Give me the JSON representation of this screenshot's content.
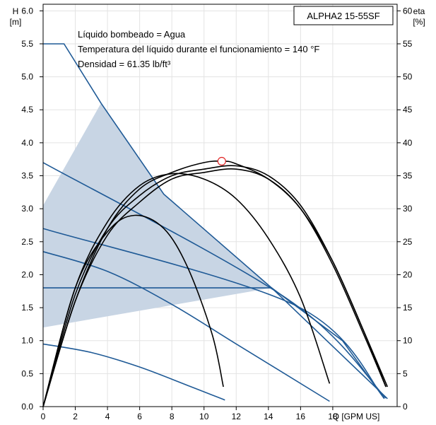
{
  "chart_data": {
    "type": "line",
    "model_label": "ALPHA2 15-55SF",
    "notes": [
      "Líquido bombeado = Agua",
      "Temperatura del líquido durante el funcionamiento = 140 °F",
      "Densidad = 61.35 lb/ft³"
    ],
    "x_axis": {
      "title": "Q [GPM US]",
      "ticks": [
        "0",
        "2",
        "4",
        "6",
        "8",
        "10",
        "12",
        "14",
        "16",
        "18"
      ],
      "range": [
        0,
        22
      ]
    },
    "y_left": {
      "title_line1": "H",
      "title_line2": "[m]",
      "ticks": [
        "0.0",
        "0.5",
        "1.0",
        "1.5",
        "2.0",
        "2.5",
        "3.0",
        "3.5",
        "4.0",
        "4.5",
        "5.0",
        "5.5",
        "6.0"
      ],
      "range": [
        0,
        6.1
      ]
    },
    "y_right": {
      "title_line1": "eta",
      "title_line2": "[%]",
      "ticks": [
        "0",
        "5",
        "10",
        "15",
        "20",
        "25",
        "30",
        "35",
        "40",
        "45",
        "50",
        "55",
        "60"
      ],
      "range": [
        0,
        61
      ]
    },
    "grid": true,
    "colors": {
      "curve_blue": "#1f5a96",
      "area_fill": "#c8d5e4",
      "eta_curve": "#000000",
      "marker": "#e02020"
    },
    "operating_area": [
      [
        0,
        1.2
      ],
      [
        0,
        3.05
      ],
      [
        3.6,
        4.6
      ],
      [
        7.5,
        3.22
      ],
      [
        14.2,
        1.8
      ],
      [
        0,
        1.2
      ]
    ],
    "head_curves": [
      {
        "points": [
          [
            0,
            5.5
          ],
          [
            1.3,
            5.5
          ],
          [
            3.6,
            4.6
          ],
          [
            7.5,
            3.22
          ],
          [
            14.2,
            1.8
          ],
          [
            21.4,
            0.12
          ]
        ]
      },
      {
        "points": [
          [
            0,
            3.7
          ],
          [
            15.2,
            1.63
          ],
          [
            21.3,
            0.13
          ]
        ]
      },
      {
        "points": [
          [
            0,
            2.7
          ],
          [
            15.8,
            1.52
          ],
          [
            21.2,
            0.13
          ]
        ]
      },
      {
        "points": [
          [
            0,
            1.8
          ],
          [
            14.2,
            1.8
          ],
          [
            18.6,
            1.0
          ],
          [
            21.2,
            0.12
          ]
        ]
      },
      {
        "points": [
          [
            0,
            2.35
          ],
          [
            4.0,
            2.05
          ],
          [
            8.0,
            1.55
          ],
          [
            12.0,
            0.95
          ],
          [
            17.8,
            0.08
          ]
        ]
      },
      {
        "points": [
          [
            0,
            0.95
          ],
          [
            3.0,
            0.82
          ],
          [
            6.0,
            0.6
          ],
          [
            9.0,
            0.32
          ],
          [
            11.3,
            0.1
          ]
        ]
      }
    ],
    "eta_curves": [
      {
        "points": [
          [
            0,
            0
          ],
          [
            2,
            17
          ],
          [
            4,
            27
          ],
          [
            6,
            32
          ],
          [
            8,
            35
          ],
          [
            10,
            36
          ],
          [
            12,
            36.5
          ],
          [
            14,
            35
          ],
          [
            16,
            30.5
          ],
          [
            18,
            22
          ],
          [
            20,
            11
          ],
          [
            21.4,
            3
          ]
        ]
      },
      {
        "points": [
          [
            0,
            0
          ],
          [
            2,
            16
          ],
          [
            4,
            26
          ],
          [
            6,
            31
          ],
          [
            8,
            34.5
          ],
          [
            10,
            35.5
          ],
          [
            12,
            36
          ],
          [
            14,
            34.5
          ],
          [
            16,
            30
          ],
          [
            18,
            21.5
          ],
          [
            20,
            10.5
          ],
          [
            21.3,
            3
          ]
        ]
      },
      {
        "points": [
          [
            0,
            0
          ],
          [
            2,
            16
          ],
          [
            4,
            27
          ],
          [
            6,
            33
          ],
          [
            8,
            35.5
          ],
          [
            10,
            37
          ],
          [
            11.2,
            37.2
          ],
          [
            12,
            36.8
          ],
          [
            14,
            34.5
          ],
          [
            16,
            30
          ],
          [
            18,
            22
          ],
          [
            20,
            11
          ],
          [
            21.3,
            3
          ]
        ]
      },
      {
        "points": [
          [
            0,
            0
          ],
          [
            2,
            18
          ],
          [
            4,
            28
          ],
          [
            6,
            33.5
          ],
          [
            8,
            35.3
          ],
          [
            10,
            34.5
          ],
          [
            12,
            31.5
          ],
          [
            14,
            25.5
          ],
          [
            16,
            16.5
          ],
          [
            17.8,
            3.5
          ]
        ]
      },
      {
        "points": [
          [
            0,
            0
          ],
          [
            2,
            18
          ],
          [
            4,
            26.5
          ],
          [
            5.7,
            29
          ],
          [
            7.5,
            27
          ],
          [
            9,
            21
          ],
          [
            10.5,
            11
          ],
          [
            11.2,
            3
          ]
        ]
      }
    ],
    "marker": {
      "x": 11.1,
      "y": 37.2
    }
  }
}
